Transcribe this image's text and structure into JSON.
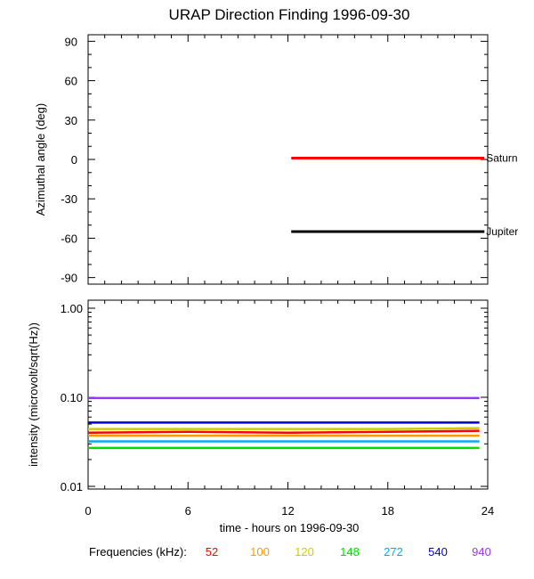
{
  "chart_data": [
    {
      "type": "line",
      "title": "URAP Direction Finding  1996-09-30",
      "ylabel": "Azimuthal angle (deg)",
      "xlim": [
        0,
        24
      ],
      "ylim": [
        -95,
        95
      ],
      "yticks": [
        "90",
        "60",
        "30",
        "0",
        "-30",
        "-60",
        "-90"
      ],
      "ytick_values": [
        90,
        60,
        30,
        0,
        -30,
        -60,
        -90
      ],
      "grid": false,
      "series": [
        {
          "name": "Saturn",
          "color": "#ff0000",
          "x": [
            12.2,
            23.8
          ],
          "y": [
            1,
            1
          ]
        },
        {
          "name": "Jupiter",
          "color": "#000000",
          "x": [
            12.2,
            23.8
          ],
          "y": [
            -55,
            -55
          ]
        }
      ]
    },
    {
      "type": "scatter",
      "ylabel": "intensity (microvolt/sqrt(Hz))",
      "xlabel": "time - hours on 1996-09-30",
      "xlim": [
        0,
        24
      ],
      "ylim": [
        0.01,
        1.0
      ],
      "yscale": "log",
      "xticks": [
        "0",
        "6",
        "12",
        "18",
        "24"
      ],
      "xtick_values": [
        0,
        6,
        12,
        18,
        24
      ],
      "yticks": [
        "1.00",
        "0.10",
        "0.01"
      ],
      "ytick_values": [
        1.0,
        0.1,
        0.01
      ],
      "grid": false,
      "legend_label": "Frequencies (kHz):",
      "series": [
        {
          "name": "52",
          "color": "#ff0000",
          "x": [
            0,
            6,
            12,
            18,
            23.5
          ],
          "y": [
            0.04,
            0.041,
            0.04,
            0.041,
            0.042
          ]
        },
        {
          "name": "100",
          "color": "#ff9900",
          "x": [
            0,
            6,
            12,
            18,
            23.5
          ],
          "y": [
            0.037,
            0.037,
            0.037,
            0.037,
            0.037
          ]
        },
        {
          "name": "120",
          "color": "#cccc00",
          "x": [
            0,
            6,
            12,
            18,
            23.5
          ],
          "y": [
            0.044,
            0.044,
            0.044,
            0.044,
            0.045
          ]
        },
        {
          "name": "148",
          "color": "#00dd00",
          "x": [
            0,
            6,
            12,
            18,
            23.5
          ],
          "y": [
            0.027,
            0.027,
            0.027,
            0.027,
            0.027
          ]
        },
        {
          "name": "272",
          "color": "#00aaff",
          "x": [
            0,
            6,
            12,
            18,
            23.5
          ],
          "y": [
            0.032,
            0.032,
            0.032,
            0.032,
            0.032
          ]
        },
        {
          "name": "540",
          "color": "#0000cc",
          "x": [
            0,
            6,
            12,
            18,
            23.5
          ],
          "y": [
            0.052,
            0.052,
            0.052,
            0.052,
            0.052
          ]
        },
        {
          "name": "940",
          "color": "#9933ff",
          "x": [
            0,
            6,
            12,
            18,
            23.5
          ],
          "y": [
            0.098,
            0.098,
            0.098,
            0.098,
            0.098
          ]
        }
      ]
    }
  ]
}
